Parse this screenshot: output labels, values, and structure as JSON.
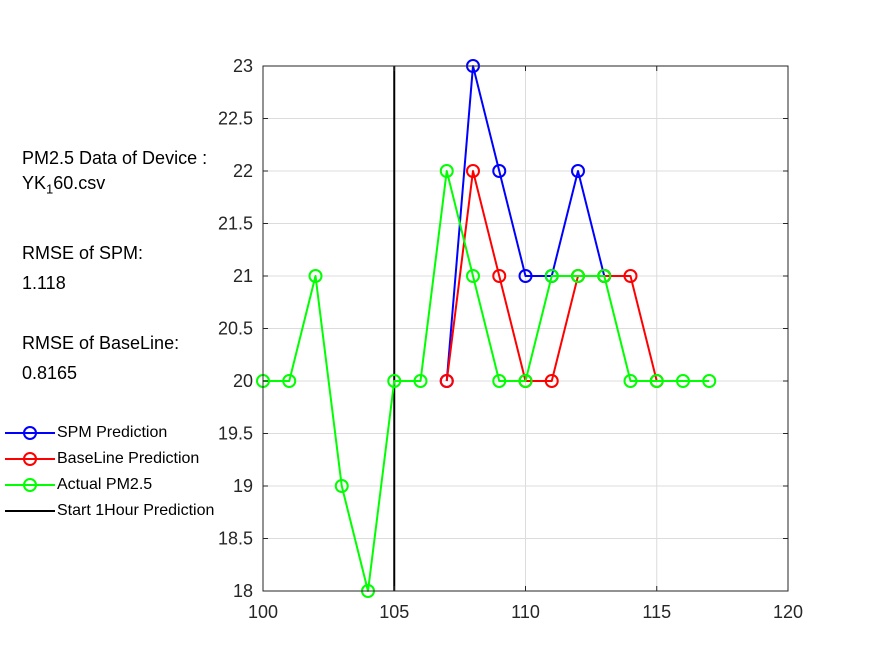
{
  "info": {
    "device_label": "PM2.5 Data of Device :",
    "device_file_prefix": "YK",
    "device_file_sub": "1",
    "device_file_suffix": "60.csv",
    "rmse_spm_label": "RMSE of SPM:",
    "rmse_spm_value": "1.118",
    "rmse_baseline_label": "RMSE of BaseLine:",
    "rmse_baseline_value": "0.8165"
  },
  "chart_data": {
    "type": "line",
    "title": "",
    "xlabel": "",
    "ylabel": "",
    "xlim": [
      100,
      120
    ],
    "ylim": [
      18,
      23
    ],
    "xticks": [
      "100",
      "105",
      "110",
      "115",
      "120"
    ],
    "yticks": [
      "18",
      "18.5",
      "19",
      "19.5",
      "20",
      "20.5",
      "21",
      "21.5",
      "22",
      "22.5",
      "23"
    ],
    "grid": true,
    "legend_position": "left",
    "series": [
      {
        "name": "SPM Prediction",
        "color": "#0000ff",
        "marker": "circle",
        "x": [
          107,
          108,
          109,
          110,
          111,
          112,
          113
        ],
        "y": [
          20,
          23,
          22,
          21,
          21,
          22,
          21
        ]
      },
      {
        "name": "BaseLine Prediction",
        "color": "#ff0000",
        "marker": "circle",
        "x": [
          107,
          108,
          109,
          110,
          111,
          112,
          113,
          114,
          115
        ],
        "y": [
          20,
          22,
          21,
          20,
          20,
          21,
          21,
          21,
          20
        ]
      },
      {
        "name": "Actual PM2.5",
        "color": "#00ff00",
        "marker": "circle",
        "x": [
          100,
          101,
          102,
          103,
          104,
          105,
          106,
          107,
          108,
          109,
          110,
          111,
          112,
          113,
          114,
          115,
          116,
          117
        ],
        "y": [
          20,
          20,
          21,
          19,
          18,
          20,
          20,
          22,
          21,
          20,
          20,
          21,
          21,
          21,
          20,
          20,
          20,
          20
        ]
      }
    ],
    "vertical_line": {
      "name": "Start 1Hour Prediction",
      "color": "#000000",
      "x": 105
    }
  }
}
